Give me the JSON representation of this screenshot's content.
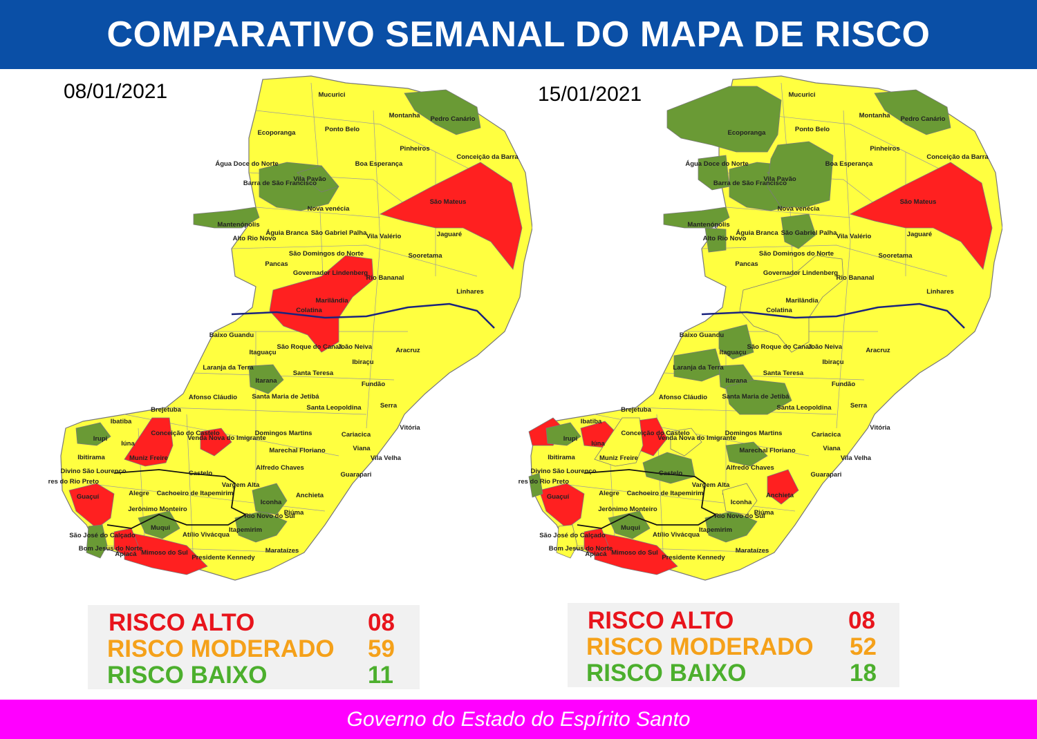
{
  "title": "COMPARATIVO SEMANAL DO MAPA DE RISCO",
  "footer": "Governo do Estado do Espírito Santo",
  "colors": {
    "alto": "#ff2020",
    "moderado": "#ffff40",
    "baixo": "#6a9a35",
    "river": "#1a237e",
    "alto_text": "#e8141c",
    "moderado_text": "#f5a11a",
    "baixo_text": "#4caf2d"
  },
  "maps": [
    {
      "date": "08/01/2021",
      "legend": [
        {
          "label": "RISCO ALTO",
          "value": "08",
          "level": "alto"
        },
        {
          "label": "RISCO MODERADO",
          "value": "59",
          "level": "moderado"
        },
        {
          "label": "RISCO BAIXO",
          "value": "11",
          "level": "baixo"
        }
      ]
    },
    {
      "date": "15/01/2021",
      "legend": [
        {
          "label": "RISCO ALTO",
          "value": "08",
          "level": "alto"
        },
        {
          "label": "RISCO MODERADO",
          "value": "52",
          "level": "moderado"
        },
        {
          "label": "RISCO BAIXO",
          "value": "18",
          "level": "baixo"
        }
      ]
    }
  ],
  "municipality_labels": {
    "mucurici": "Mucurici",
    "montanha": "Montanha",
    "pedro_canario": "Pedro Canário",
    "ecoporanga": "Ecoporanga",
    "ponto_belo": "Ponto Belo",
    "pinheiros": "Pinheiros",
    "conceicao_barra": "Conceição da Barra",
    "agua_doce": "Água Doce do Norte",
    "vila_pavao": "Vila Pavão",
    "boa_esperanca": "Boa Esperança",
    "barra_sao_francisco": "Barra de São Francisco",
    "sao_mateus": "São Mateus",
    "nova_venecia": "Nova venécia",
    "mantenopolis": "Mantenópolis",
    "aguia_branca": "Águia Branca",
    "sao_gabriel": "São Gabriel Palha",
    "vila_valerio": "Vila Valério",
    "jaguare": "Jaguaré",
    "alto_rio_novo": "Alto Rio Novo",
    "sooretama": "Sooretama",
    "sao_domingos": "São Domingos do Norte",
    "pancas": "Pancas",
    "governador_lindenberg": "Governador Lindenberg",
    "rio_bananal": "Rio Bananal",
    "linhares": "Linhares",
    "marilandia": "Marilândia",
    "colatina": "Colatina",
    "baixo_guandu": "Baixo Guandu",
    "sao_roque": "São Roque do Canaã",
    "joao_neiva": "João Neiva",
    "aracruz": "Aracruz",
    "itaguacu": "Itaguaçu",
    "ibiracu": "Ibiraçu",
    "laranja_terra": "Laranja da Terra",
    "santa_teresa": "Santa Teresa",
    "itarana": "Itarana",
    "fundao": "Fundão",
    "afonso_claudio": "Afonso Cláudio",
    "santa_maria": "Santa Maria de Jetibá",
    "serra": "Serra",
    "brejetuba": "Brejetuba",
    "santa_leopoldina": "Santa Leopoldina",
    "vitoria": "Vitória",
    "ibatiba": "Ibatiba",
    "conceicao_castelo": "Conceição do Castelo",
    "venda_nova": "Venda Nova do Imigrante",
    "domingos_martins": "Domingos Martins",
    "cariacica": "Cariacica",
    "irupi": "Irupi",
    "iuna": "Iúna",
    "viana": "Viana",
    "marechal_floriano": "Marechal Floriano",
    "ibitirama": "Ibitirama",
    "muniz_freire": "Muniz Freire",
    "vila_velha": "Vila Velha",
    "divino": "Divino São Lourenço",
    "castelo": "Castelo",
    "alfredo_chaves": "Alfredo Chaves",
    "guarapari": "Guarapari",
    "dores_rio_preto": "Dores do Rio Preto",
    "vargem_alta": "Vargem Alta",
    "guacui": "Guaçuí",
    "alegre": "Alegre",
    "cachoeiro": "Cachoeiro de Itapemirim",
    "anchieta": "Anchieta",
    "iconha": "Iconha",
    "jeronimo_monteiro": "Jerônimo Monteiro",
    "rio_novo": "Rio Novo do Sul",
    "piuma": "Piúma",
    "sao_jose_calcado": "São José do Calçado",
    "muqui": "Muqui",
    "atilio_vivacqua": "Atílio Vivácqua",
    "itapemirim": "Itapemirim",
    "bom_jesus": "Bom Jesus do Norte",
    "apiaca": "Apiacá",
    "mimoso": "Mimoso do Sul",
    "marataizes": "Marataízes",
    "presidente_kennedy": "Presidente Kennedy"
  }
}
